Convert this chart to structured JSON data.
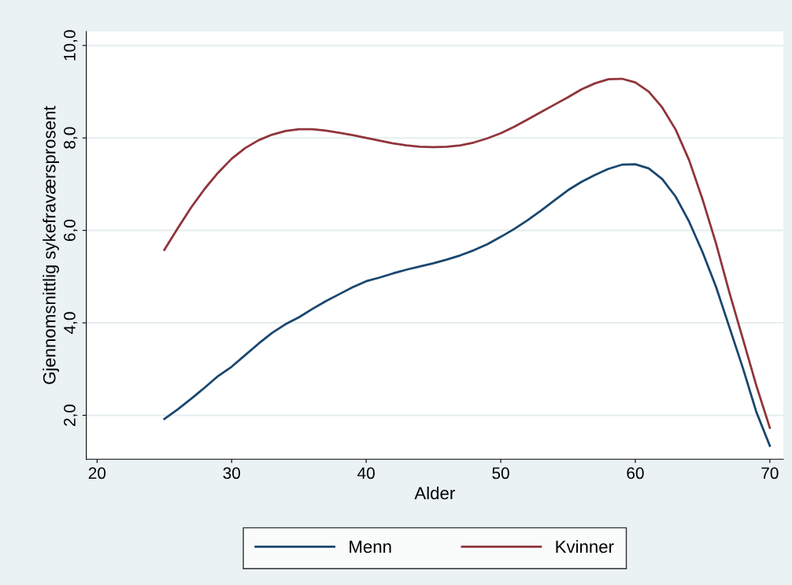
{
  "chart_data": {
    "type": "line",
    "xlabel": "Alder",
    "ylabel": "Gjennomsnittlig sykefraværsprosent",
    "x": [
      25,
      26,
      27,
      28,
      29,
      30,
      31,
      32,
      33,
      34,
      35,
      36,
      37,
      38,
      39,
      40,
      41,
      42,
      43,
      44,
      45,
      46,
      47,
      48,
      49,
      50,
      51,
      52,
      53,
      54,
      55,
      56,
      57,
      58,
      59,
      60,
      61,
      62,
      63,
      64,
      65,
      66,
      67,
      68,
      69,
      70
    ],
    "series": [
      {
        "name": "Menn",
        "color": "#1a476f",
        "values": [
          1.92,
          2.13,
          2.36,
          2.6,
          2.85,
          3.05,
          3.3,
          3.55,
          3.78,
          3.97,
          4.12,
          4.3,
          4.47,
          4.62,
          4.77,
          4.9,
          4.98,
          5.07,
          5.15,
          5.22,
          5.29,
          5.37,
          5.46,
          5.57,
          5.7,
          5.86,
          6.03,
          6.22,
          6.43,
          6.65,
          6.87,
          7.05,
          7.2,
          7.33,
          7.42,
          7.43,
          7.34,
          7.11,
          6.73,
          6.19,
          5.53,
          4.78,
          3.9,
          3.02,
          2.07,
          1.34
        ]
      },
      {
        "name": "Kvinner",
        "color": "#90353b",
        "values": [
          5.58,
          6.05,
          6.5,
          6.9,
          7.25,
          7.55,
          7.78,
          7.95,
          8.07,
          8.15,
          8.19,
          8.19,
          8.16,
          8.11,
          8.06,
          8.0,
          7.94,
          7.88,
          7.84,
          7.81,
          7.8,
          7.81,
          7.84,
          7.9,
          7.99,
          8.1,
          8.24,
          8.4,
          8.56,
          8.72,
          8.88,
          9.05,
          9.18,
          9.27,
          9.28,
          9.2,
          9.0,
          8.66,
          8.18,
          7.52,
          6.67,
          5.72,
          4.65,
          3.65,
          2.64,
          1.73
        ]
      }
    ],
    "xlim": [
      19.2,
      71.0
    ],
    "xticks": [
      20,
      30,
      40,
      50,
      60,
      70
    ],
    "ylim": [
      1.05,
      10.3
    ],
    "yticks": [
      {
        "value": 2,
        "label": "2,0"
      },
      {
        "value": 4,
        "label": "4,0"
      },
      {
        "value": 6,
        "label": "6,0"
      },
      {
        "value": 8,
        "label": "8,0"
      },
      {
        "value": 10,
        "label": "10,0"
      }
    ],
    "grid": "y",
    "legend": "bottom",
    "marker": "none",
    "line_style": "solid"
  }
}
